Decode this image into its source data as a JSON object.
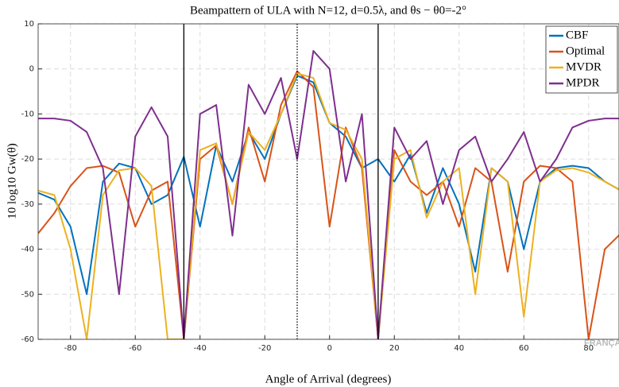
{
  "chart_data": {
    "type": "line",
    "title": "Beampattern of ULA with N=12, d=0.5λ, and θs − θ0=-2°",
    "x_label": "Angle of Arrival (degrees)",
    "y_label": "10 log10 Gw(θ)",
    "watermark": "FRANÇAISE",
    "x": [
      -90,
      -85,
      -80,
      -75,
      -70,
      -65,
      -60,
      -55,
      -50,
      -45,
      -40,
      -35,
      -30,
      -25,
      -20,
      -15,
      -10,
      -5,
      0,
      5,
      10,
      15,
      20,
      25,
      30,
      35,
      40,
      45,
      50,
      55,
      60,
      65,
      70,
      75,
      80,
      85,
      90
    ],
    "series": [
      {
        "name": "CBF",
        "color": "#0072bd",
        "values": [
          -27.5,
          -29,
          -35,
          -50,
          -25,
          -21,
          -22,
          -30,
          -28,
          -19.5,
          -35,
          -17,
          -25,
          -14,
          -20,
          -10,
          -1.5,
          -3,
          -12,
          -15,
          -22,
          -20,
          -25,
          -19,
          -32,
          -22,
          -30,
          -45,
          -22,
          -25,
          -40,
          -25,
          -22,
          -21.5,
          -22,
          -25,
          -27
        ]
      },
      {
        "name": "Optimal",
        "color": "#d95319",
        "values": [
          -36.5,
          -32,
          -26,
          -22,
          -21.5,
          -23,
          -35,
          -27,
          -25,
          -60,
          -20,
          -17,
          -30,
          -13,
          -25,
          -8,
          -0.5,
          -4,
          -35,
          -13,
          -22,
          -60,
          -18,
          -25,
          -28,
          -25,
          -35,
          -22,
          -25,
          -45,
          -25,
          -21.5,
          -22,
          -25,
          -60,
          -40,
          -36.5
        ]
      },
      {
        "name": "MVDR",
        "color": "#edb120",
        "values": [
          -27,
          -28,
          -40,
          -60,
          -28,
          -22.5,
          -22,
          -26,
          -60,
          -60,
          -18,
          -16.5,
          -30,
          -14,
          -18,
          -10,
          -1,
          -2,
          -12,
          -13.5,
          -20,
          -60,
          -20,
          -18,
          -33,
          -25,
          -22,
          -50,
          -22,
          -25,
          -55,
          -25,
          -22.5,
          -22,
          -23,
          -25,
          -27
        ]
      },
      {
        "name": "MPDR",
        "color": "#7e2f8e",
        "values": [
          -11,
          -11,
          -11.5,
          -14,
          -22,
          -50,
          -15,
          -8.5,
          -15,
          -60,
          -10,
          -8,
          -37,
          -3.5,
          -10,
          -2,
          -20,
          4,
          0,
          -25,
          -10,
          -60,
          -13,
          -20,
          -16,
          -30,
          -18,
          -15,
          -25,
          -20,
          -14,
          -25,
          -20,
          -13,
          -11.5,
          -11,
          -11
        ]
      }
    ],
    "vlines": [
      {
        "x": -45,
        "style": "solid"
      },
      {
        "x": -10,
        "style": "dotted"
      },
      {
        "x": 15,
        "style": "solid"
      }
    ],
    "xlim": [
      -90,
      90
    ],
    "ylim": [
      -60,
      10
    ],
    "xticks": [
      -80,
      -60,
      -40,
      -20,
      0,
      20,
      40,
      60,
      80
    ],
    "yticks": [
      -60,
      -50,
      -40,
      -30,
      -20,
      -10,
      0,
      10
    ],
    "grid": true,
    "legend": "upper right"
  }
}
